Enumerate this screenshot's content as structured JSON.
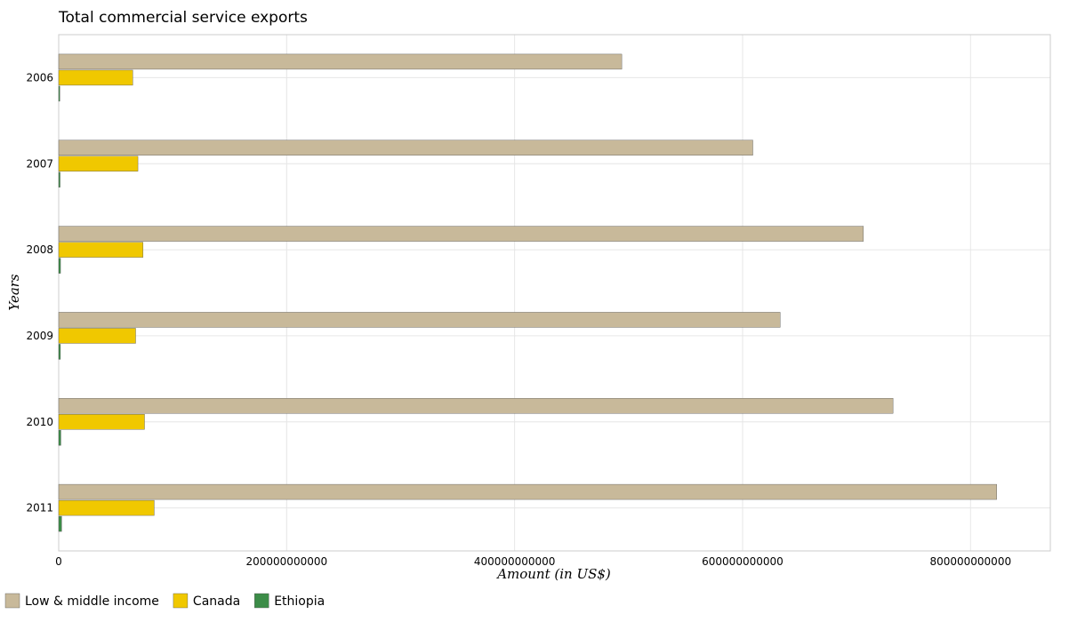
{
  "chart_data": {
    "type": "bar",
    "orientation": "horizontal",
    "title": "Total commercial service exports",
    "xlabel": "Amount (in US$)",
    "ylabel": "Years",
    "categories": [
      "2006",
      "2007",
      "2008",
      "2009",
      "2010",
      "2011"
    ],
    "series": [
      {
        "name": "Low & middle income",
        "color": "#c8b99a",
        "values": [
          494000000000,
          609000000000,
          706000000000,
          633000000000,
          732000000000,
          823000000000
        ]
      },
      {
        "name": "Canada",
        "color": "#f0c800",
        "values": [
          65000000000,
          69500000000,
          74000000000,
          67500000000,
          75300000000,
          83800000000
        ]
      },
      {
        "name": "Ethiopia",
        "color": "#3c8c48",
        "values": [
          1000000000,
          1200000000,
          1600000000,
          1500000000,
          1900000000,
          2600000000
        ]
      }
    ],
    "xlim": [
      0,
      870000000000
    ],
    "xticks": [
      0,
      200000000000,
      400000000000,
      600000000000,
      800000000000
    ],
    "xtick_labels": [
      "0",
      "200000000000",
      "400000000000",
      "600000000000",
      "800000000000"
    ],
    "grid": true,
    "legend_position": "bottom-left"
  }
}
